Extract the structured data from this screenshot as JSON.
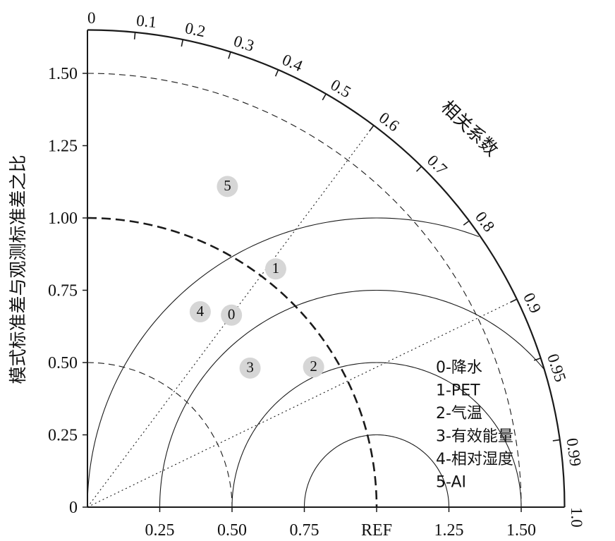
{
  "chart_data": {
    "type": "scatter",
    "subtype": "taylor-diagram",
    "title": "",
    "ylabel": "模式标准差与观测标准差之比",
    "xlabel": "",
    "correlation_label": "相关系数",
    "ref_label": "REF",
    "std_range": [
      0,
      1.65
    ],
    "x_tick_labels": [
      "0.25",
      "0.50",
      "0.75",
      "REF",
      "1.25",
      "1.50"
    ],
    "x_tick_values": [
      0.25,
      0.5,
      0.75,
      1.0,
      1.25,
      1.5
    ],
    "y_tick_labels": [
      "0",
      "0.25",
      "0.50",
      "0.75",
      "1.00",
      "1.25",
      "1.50"
    ],
    "y_tick_values": [
      0,
      0.25,
      0.5,
      0.75,
      1.0,
      1.25,
      1.5
    ],
    "correlation_ticks": [
      {
        "value": 0,
        "label": "0"
      },
      {
        "value": 0.1,
        "label": "0.1"
      },
      {
        "value": 0.2,
        "label": "0.2"
      },
      {
        "value": 0.3,
        "label": "0.3"
      },
      {
        "value": 0.4,
        "label": "0.4"
      },
      {
        "value": 0.5,
        "label": "0.5"
      },
      {
        "value": 0.6,
        "label": "0.6"
      },
      {
        "value": 0.7,
        "label": "0.7"
      },
      {
        "value": 0.8,
        "label": "0.8"
      },
      {
        "value": 0.9,
        "label": "0.9"
      },
      {
        "value": 0.95,
        "label": "0.95"
      },
      {
        "value": 0.99,
        "label": "0.99"
      },
      {
        "value": 1.0,
        "label": "1.0"
      }
    ],
    "correlation_lines": [
      0.6,
      0.9
    ],
    "dashed_std_arcs": [
      0.5,
      1.0,
      1.5
    ],
    "rmsd_arcs": [
      0.25,
      0.5,
      0.75,
      1.0
    ],
    "points": [
      {
        "label": "0",
        "std_ratio": 0.83,
        "correlation": 0.6
      },
      {
        "label": "1",
        "std_ratio": 1.05,
        "correlation": 0.62
      },
      {
        "label": "2",
        "std_ratio": 0.92,
        "correlation": 0.85
      },
      {
        "label": "3",
        "std_ratio": 0.74,
        "correlation": 0.76
      },
      {
        "label": "4",
        "std_ratio": 0.78,
        "correlation": 0.5
      },
      {
        "label": "5",
        "std_ratio": 1.21,
        "correlation": 0.4
      }
    ],
    "legend": [
      "0-降水",
      "1-PET",
      "2-气温",
      "3-有效能量",
      "4-相对湿度",
      "5-AI"
    ],
    "legend_position": "bottom-right",
    "marker_color": "#d6d6d6",
    "line_color": "#1a1a1a"
  }
}
